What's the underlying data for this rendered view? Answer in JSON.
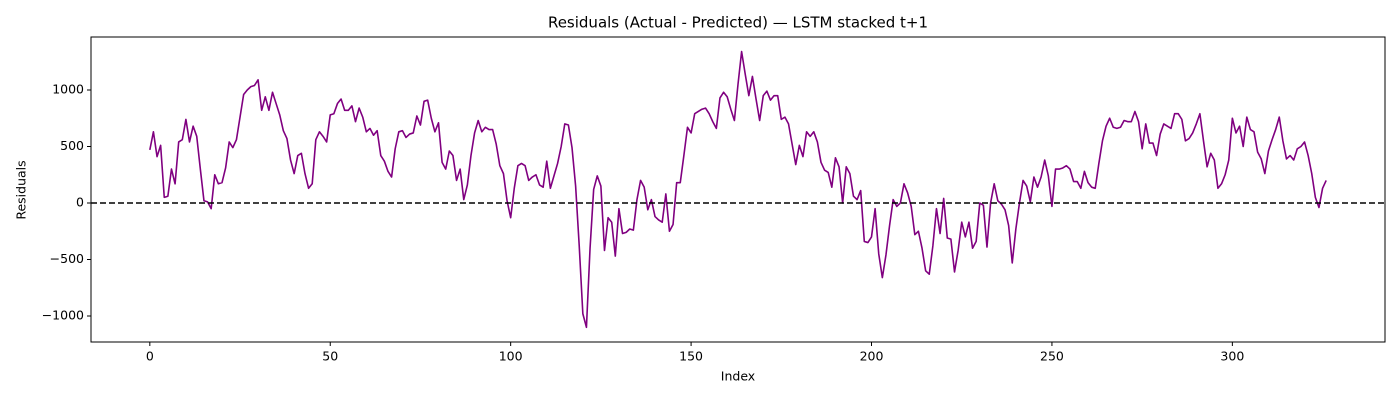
{
  "chart_data": {
    "type": "line",
    "title": "Residuals (Actual - Predicted) — LSTM stacked t+1",
    "x_label": "Index",
    "y_label": "Residuals",
    "x": [
      0,
      1,
      2,
      3,
      4,
      5,
      6,
      7,
      8,
      9,
      10,
      11,
      12,
      13,
      14,
      15,
      16,
      17,
      18,
      19,
      20,
      21,
      22,
      23,
      24,
      25,
      26,
      27,
      28,
      29,
      30,
      31,
      32,
      33,
      34,
      35,
      36,
      37,
      38,
      39,
      40,
      41,
      42,
      43,
      44,
      45,
      46,
      47,
      48,
      49,
      50,
      51,
      52,
      53,
      54,
      55,
      56,
      57,
      58,
      59,
      60,
      61,
      62,
      63,
      64,
      65,
      66,
      67,
      68,
      69,
      70,
      71,
      72,
      73,
      74,
      75,
      76,
      77,
      78,
      79,
      80,
      81,
      82,
      83,
      84,
      85,
      86,
      87,
      88,
      89,
      90,
      91,
      92,
      93,
      94,
      95,
      96,
      97,
      98,
      99,
      100,
      101,
      102,
      103,
      104,
      105,
      106,
      107,
      108,
      109,
      110,
      111,
      112,
      113,
      114,
      115,
      116,
      117,
      118,
      119,
      120,
      121,
      122,
      123,
      124,
      125,
      126,
      127,
      128,
      129,
      130,
      131,
      132,
      133,
      134,
      135,
      136,
      137,
      138,
      139,
      140,
      141,
      142,
      143,
      144,
      145,
      146,
      147,
      148,
      149,
      150,
      151,
      152,
      153,
      154,
      155,
      156,
      157,
      158,
      159,
      160,
      161,
      162,
      163,
      164,
      165,
      166,
      167,
      168,
      169,
      170,
      171,
      172,
      173,
      174,
      175,
      176,
      177,
      178,
      179,
      180,
      181,
      182,
      183,
      184,
      185,
      186,
      187,
      188,
      189,
      190,
      191,
      192,
      193,
      194,
      195,
      196,
      197,
      198,
      199,
      200,
      201,
      202,
      203,
      204,
      205,
      206,
      207,
      208,
      209,
      210,
      211,
      212,
      213,
      214,
      215,
      216,
      217,
      218,
      219,
      220,
      221,
      222,
      223,
      224,
      225,
      226,
      227,
      228,
      229,
      230,
      231,
      232,
      233,
      234,
      235,
      236,
      237,
      238,
      239,
      240,
      241,
      242,
      243,
      244,
      245,
      246,
      247,
      248,
      249,
      250,
      251,
      252,
      253,
      254,
      255,
      256,
      257,
      258,
      259,
      260,
      261,
      262,
      263,
      264,
      265,
      266,
      267,
      268,
      269,
      270,
      271,
      272,
      273,
      274,
      275,
      276,
      277,
      278,
      279,
      280,
      281,
      282,
      283,
      284,
      285,
      286,
      287,
      288,
      289,
      290,
      291,
      292,
      293,
      294,
      295,
      296,
      297,
      298,
      299,
      300,
      301,
      302,
      303,
      304,
      305,
      306,
      307,
      308,
      309,
      310,
      311,
      312,
      313,
      314,
      315,
      316,
      317,
      318,
      319,
      320,
      321,
      322,
      323,
      324,
      325,
      326
    ],
    "series": [
      {
        "name": "Residuals",
        "color": "#800080",
        "values": [
          470,
          630,
          410,
          510,
          50,
          60,
          300,
          170,
          540,
          560,
          740,
          540,
          680,
          590,
          300,
          20,
          10,
          -50,
          250,
          170,
          180,
          310,
          540,
          490,
          560,
          760,
          960,
          1000,
          1030,
          1040,
          1090,
          820,
          940,
          820,
          980,
          880,
          780,
          640,
          570,
          380,
          260,
          420,
          440,
          260,
          130,
          170,
          560,
          630,
          590,
          540,
          780,
          790,
          880,
          920,
          820,
          820,
          860,
          720,
          840,
          760,
          630,
          660,
          600,
          640,
          420,
          370,
          280,
          230,
          480,
          630,
          640,
          580,
          610,
          620,
          770,
          690,
          900,
          910,
          750,
          630,
          710,
          360,
          300,
          460,
          420,
          200,
          300,
          30,
          160,
          420,
          620,
          730,
          630,
          670,
          650,
          650,
          520,
          330,
          260,
          20,
          -130,
          130,
          330,
          350,
          330,
          200,
          230,
          250,
          160,
          140,
          370,
          130,
          240,
          350,
          500,
          700,
          690,
          490,
          150,
          -380,
          -980,
          -1100,
          -400,
          120,
          240,
          150,
          -420,
          -130,
          -170,
          -470,
          -50,
          -270,
          -260,
          -230,
          -240,
          30,
          200,
          140,
          -60,
          30,
          -120,
          -150,
          -170,
          80,
          -250,
          -190,
          180,
          180,
          420,
          670,
          620,
          790,
          810,
          830,
          840,
          790,
          720,
          660,
          930,
          980,
          940,
          830,
          730,
          1050,
          1340,
          1140,
          950,
          1120,
          920,
          730,
          950,
          990,
          910,
          950,
          950,
          740,
          760,
          700,
          520,
          340,
          510,
          410,
          630,
          590,
          630,
          540,
          360,
          290,
          270,
          140,
          400,
          320,
          0,
          320,
          260,
          60,
          30,
          110,
          -340,
          -350,
          -300,
          -50,
          -450,
          -660,
          -460,
          -200,
          30,
          -30,
          0,
          170,
          90,
          -30,
          -280,
          -250,
          -400,
          -600,
          -630,
          -380,
          -50,
          -270,
          40,
          -310,
          -320,
          -610,
          -420,
          -170,
          -300,
          -170,
          -400,
          -340,
          0,
          -20,
          -390,
          0,
          170,
          20,
          -10,
          -60,
          -200,
          -530,
          -230,
          0,
          200,
          150,
          10,
          230,
          140,
          230,
          380,
          240,
          -30,
          300,
          300,
          310,
          330,
          300,
          190,
          190,
          130,
          280,
          180,
          140,
          130,
          350,
          550,
          680,
          750,
          670,
          660,
          670,
          730,
          720,
          720,
          810,
          720,
          480,
          700,
          530,
          530,
          420,
          610,
          700,
          680,
          660,
          790,
          790,
          740,
          550,
          570,
          620,
          700,
          790,
          550,
          320,
          440,
          380,
          130,
          170,
          250,
          380,
          750,
          620,
          680,
          500,
          760,
          650,
          630,
          450,
          390,
          260,
          460,
          560,
          650,
          760,
          550,
          390,
          420,
          380,
          480,
          500,
          540,
          420,
          260,
          50,
          -40,
          130,
          200
        ]
      }
    ],
    "hline": 0,
    "hline_color": "#000000",
    "xlim": [
      -16.3,
      342.3
    ],
    "xticks": [
      0,
      50,
      100,
      150,
      200,
      250,
      300
    ],
    "ylim": [
      -1230,
      1469
    ],
    "yticks": [
      {
        "value": -1000,
        "label": "−1000"
      },
      {
        "value": -500,
        "label": "−500"
      },
      0,
      500,
      1000
    ],
    "grid": false
  }
}
